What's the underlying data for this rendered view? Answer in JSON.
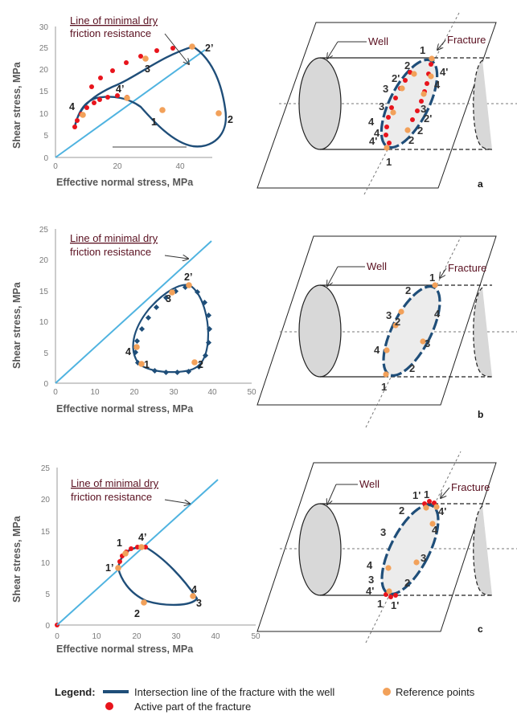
{
  "colors": {
    "line": "#4fb3e0",
    "curve": "#1f4e79",
    "active": "#e8141c",
    "reference": "#f2a15a",
    "annotation": "#5a1020"
  },
  "charts": [
    {
      "annotation": [
        "Line of minimal dry",
        "friction resistance"
      ],
      "x_ticks": [
        "0",
        "20",
        "40"
      ],
      "y_ticks": [
        "0",
        "5",
        "10",
        "15",
        "20",
        "25",
        "30"
      ]
    },
    {
      "annotation": [
        "Line of minimal dry",
        "friction resistance"
      ],
      "x_ticks": [
        "0",
        "10",
        "20",
        "30",
        "40",
        "50"
      ],
      "y_ticks": [
        "0",
        "5",
        "10",
        "15",
        "20",
        "25"
      ]
    },
    {
      "annotation": [
        "Line of minimal dry",
        "friction resistance"
      ],
      "x_ticks": [
        "0",
        "10",
        "20",
        "30",
        "40",
        "50"
      ],
      "y_ticks": [
        "0",
        "5",
        "10",
        "15",
        "20",
        "25"
      ]
    }
  ],
  "axis": {
    "y_label": "Shear stress, MPa",
    "x_label": "Effective normal stress, MPa"
  },
  "chart_data": [
    {
      "type": "line",
      "xlim": [
        0,
        50
      ],
      "ylim": [
        0,
        30
      ],
      "xlabel": "Effective normal stress, MPa",
      "ylabel": "Shear stress, MPa",
      "friction_line": {
        "x": [
          0,
          42
        ],
        "y": [
          0,
          24.5
        ]
      },
      "point_labels": [
        {
          "label": "1",
          "x": 29,
          "y": 9.5
        },
        {
          "label": "2",
          "x": 46,
          "y": 9
        },
        {
          "label": "2'",
          "x": 43,
          "y": 25
        },
        {
          "label": "3",
          "x": 28,
          "y": 21
        },
        {
          "label": "4",
          "x": 9.5,
          "y": 12
        },
        {
          "label": "4'",
          "x": 23,
          "y": 15.5
        }
      ]
    },
    {
      "type": "line",
      "xlim": [
        0,
        50
      ],
      "ylim": [
        0,
        25
      ],
      "xlabel": "Effective normal stress, MPa",
      "ylabel": "Shear stress, MPa",
      "friction_line": {
        "x": [
          0,
          40
        ],
        "y": [
          0,
          23
        ]
      },
      "point_labels": [
        {
          "label": "1",
          "x": 23.5,
          "y": 1.2
        },
        {
          "label": "2",
          "x": 37.5,
          "y": 3.5
        },
        {
          "label": "2'",
          "x": 33.5,
          "y": 17
        },
        {
          "label": "3",
          "x": 31.5,
          "y": 13
        },
        {
          "label": "4",
          "x": 19,
          "y": 5
        }
      ]
    },
    {
      "type": "line",
      "xlim": [
        0,
        50
      ],
      "ylim": [
        0,
        25
      ],
      "xlabel": "Effective normal stress, MPa",
      "ylabel": "Shear stress, MPa",
      "friction_line": {
        "x": [
          0,
          40
        ],
        "y": [
          0,
          23
        ]
      },
      "point_labels": [
        {
          "label": "1",
          "x": 16.5,
          "y": 13.5
        },
        {
          "label": "1'",
          "x": 12.8,
          "y": 9.3
        },
        {
          "label": "2",
          "x": 21,
          "y": 1.8
        },
        {
          "label": "3",
          "x": 36,
          "y": 3
        },
        {
          "label": "4",
          "x": 34.5,
          "y": 5.5
        },
        {
          "label": "4'",
          "x": 22.5,
          "y": 13.5
        }
      ]
    }
  ],
  "diagrams": [
    {
      "well_label": "Well",
      "fracture_label": "Fracture",
      "panel": "a",
      "left_labels": [
        "2",
        "2'",
        "3",
        "3",
        "4",
        "4",
        "4'"
      ],
      "right_labels": [
        "4'",
        "4",
        "3",
        "2",
        "2'",
        "2"
      ],
      "top_label": "1",
      "bottom_label": "1"
    },
    {
      "well_label": "Well",
      "fracture_label": "Fracture",
      "panel": "b",
      "left_labels": [
        "2",
        "3",
        "2",
        "4"
      ],
      "right_labels": [
        "4",
        "3",
        "2"
      ],
      "top_label": "1",
      "bottom_label": "1"
    },
    {
      "well_label": "Well",
      "fracture_label": "Fracture",
      "panel": "c",
      "left_labels": [
        "2",
        "3",
        "4",
        "3",
        "4'"
      ],
      "right_labels": [
        "4'",
        "4",
        "3",
        "2"
      ],
      "top_label": "1",
      "top_label2": "1'",
      "bottom_label": "1",
      "bottom_label2": "1'"
    }
  ],
  "legend": {
    "title": "Legend:",
    "intersection": "Intersection line of the fracture with the well",
    "reference": "Reference points",
    "active": "Active part of the fracture"
  }
}
